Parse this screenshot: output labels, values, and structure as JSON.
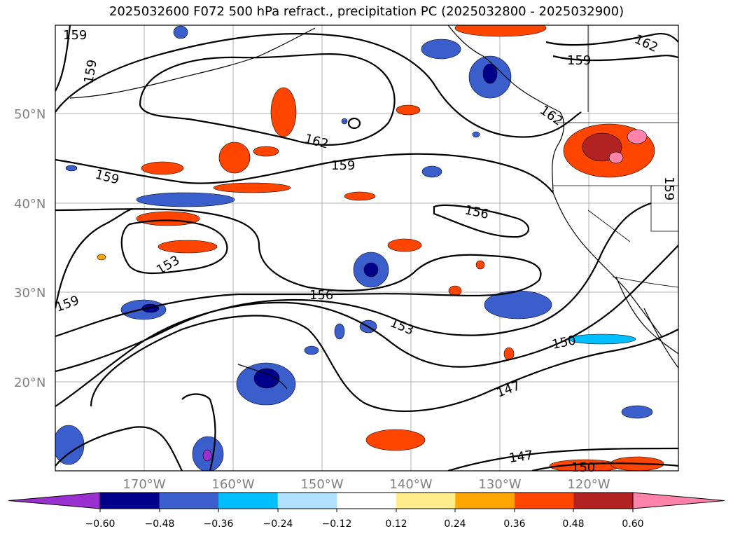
{
  "title": "2025032600 F072 500 hPa refract., precipitation PC (2025032800 - 2025032900)",
  "lat_labels": [
    "50°N",
    "40°N",
    "30°N",
    "20°N"
  ],
  "lon_labels": [
    "170°W",
    "160°W",
    "150°W",
    "140°W",
    "130°W",
    "120°W"
  ],
  "contour_labels": [
    "159",
    "159",
    "162",
    "159",
    "159",
    "156",
    "153",
    "159",
    "156",
    "153",
    "150",
    "147",
    "147",
    "150",
    "162",
    "159",
    "162",
    "159"
  ],
  "colorbar": {
    "ticks": [
      "−0.60",
      "−0.48",
      "−0.36",
      "−0.24",
      "−0.12",
      "0.12",
      "0.24",
      "0.36",
      "0.48",
      "0.60"
    ],
    "colors": [
      "#9b30d0",
      "#00008b",
      "#3a5fcd",
      "#00bfff",
      "#b0e2ff",
      "#ffffff",
      "#ffec8b",
      "#ffa500",
      "#ff4500",
      "#b22222",
      "#ff82ab"
    ]
  }
}
